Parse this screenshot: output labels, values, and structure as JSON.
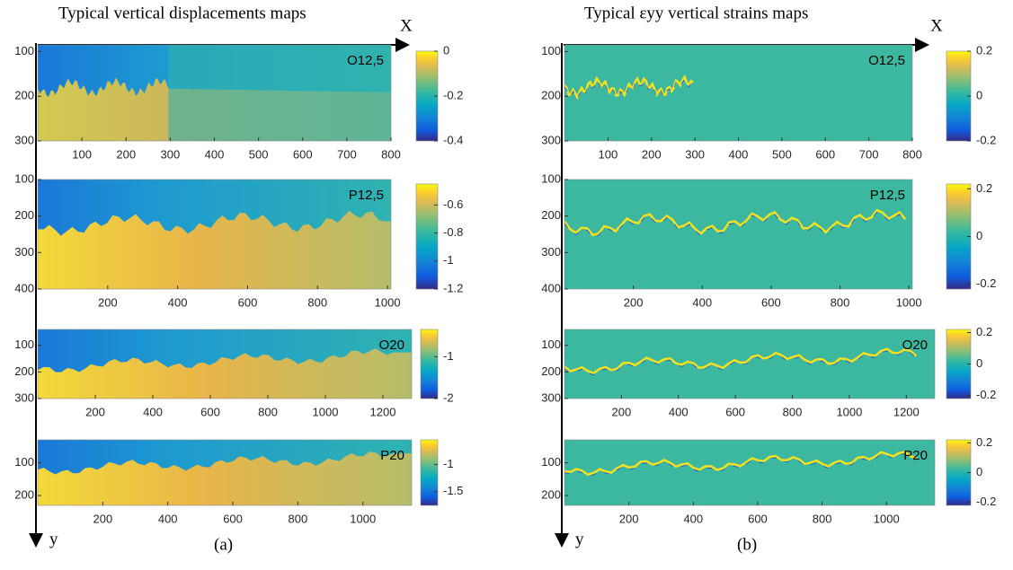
{
  "figure": {
    "titles": [
      "Typical vertical displacements maps",
      "Typical εyy vertical strains maps"
    ],
    "x_axis_label": "X",
    "y_axis_label": "y",
    "subcaptions": [
      "(a)",
      "(b)"
    ]
  },
  "chart_data": [
    {
      "type": "heatmap",
      "label": "O12,5",
      "xlim": [
        0,
        800
      ],
      "xticks": [
        100,
        200,
        300,
        400,
        500,
        600,
        700,
        800
      ],
      "ylim": [
        85,
        300
      ],
      "yticks": [
        100,
        200,
        300
      ],
      "clim": [
        -0.4,
        0
      ],
      "cticks": [
        0,
        -0.2,
        -0.4
      ]
    },
    {
      "type": "heatmap",
      "label": "P12,5",
      "xlim": [
        0,
        1010
      ],
      "xticks": [
        200,
        400,
        600,
        800,
        1000
      ],
      "ylim": [
        100,
        400
      ],
      "yticks": [
        100,
        200,
        300,
        400
      ],
      "clim": [
        -1.2,
        -0.45
      ],
      "cticks": [
        -0.6,
        -0.8,
        -1,
        -1.2
      ]
    },
    {
      "type": "heatmap",
      "label": "O20",
      "xlim": [
        0,
        1300
      ],
      "xticks": [
        200,
        400,
        600,
        800,
        1000,
        1200
      ],
      "ylim": [
        40,
        300
      ],
      "yticks": [
        100,
        200,
        300
      ],
      "clim": [
        -2,
        -0.35
      ],
      "cticks": [
        -1,
        -2
      ]
    },
    {
      "type": "heatmap",
      "label": "P20",
      "xlim": [
        0,
        1150
      ],
      "xticks": [
        200,
        400,
        600,
        800,
        1000
      ],
      "ylim": [
        30,
        230
      ],
      "yticks": [
        100,
        200
      ],
      "clim": [
        -1.75,
        -0.55
      ],
      "cticks": [
        -1,
        -1.5
      ]
    },
    {
      "type": "heatmap",
      "label": "O12,5",
      "xlim": [
        0,
        800
      ],
      "xticks": [
        100,
        200,
        300,
        400,
        500,
        600,
        700,
        800
      ],
      "ylim": [
        85,
        300
      ],
      "yticks": [
        100,
        200,
        300
      ],
      "clim": [
        -0.2,
        0.2
      ],
      "cticks": [
        0.2,
        0,
        -0.2
      ]
    },
    {
      "type": "heatmap",
      "label": "P12,5",
      "xlim": [
        0,
        1010
      ],
      "xticks": [
        200,
        400,
        600,
        800,
        1000
      ],
      "ylim": [
        100,
        400
      ],
      "yticks": [
        100,
        200,
        300,
        400
      ],
      "clim": [
        -0.22,
        0.22
      ],
      "cticks": [
        0.2,
        0,
        -0.2
      ]
    },
    {
      "type": "heatmap",
      "label": "O20",
      "xlim": [
        0,
        1300
      ],
      "xticks": [
        200,
        400,
        600,
        800,
        1000,
        1200
      ],
      "ylim": [
        40,
        300
      ],
      "yticks": [
        100,
        200,
        300
      ],
      "clim": [
        -0.22,
        0.22
      ],
      "cticks": [
        0.2,
        0,
        -0.2
      ]
    },
    {
      "type": "heatmap",
      "label": "P20",
      "xlim": [
        0,
        1150
      ],
      "xticks": [
        200,
        400,
        600,
        800,
        1000
      ],
      "ylim": [
        30,
        230
      ],
      "yticks": [
        100,
        200
      ],
      "clim": [
        -0.22,
        0.22
      ],
      "cticks": [
        0.2,
        0,
        -0.2
      ]
    }
  ]
}
